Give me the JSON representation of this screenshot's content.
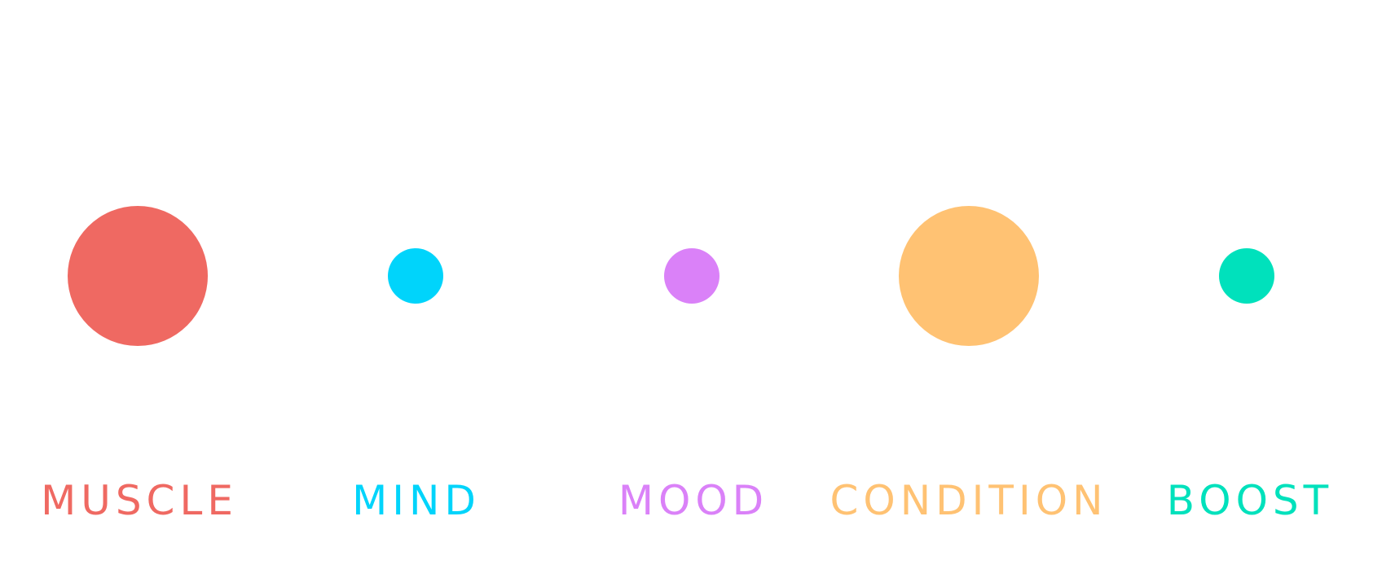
{
  "items": [
    {
      "label": "MUSCLE",
      "color": "#EF6962",
      "size": "large"
    },
    {
      "label": "MIND",
      "color": "#00D4FB",
      "size": "small"
    },
    {
      "label": "MOOD",
      "color": "#DA81F8",
      "size": "small"
    },
    {
      "label": "CONDITION",
      "color": "#FFC273",
      "size": "large"
    },
    {
      "label": "BOOST",
      "color": "#00E1BC",
      "size": "small"
    }
  ]
}
